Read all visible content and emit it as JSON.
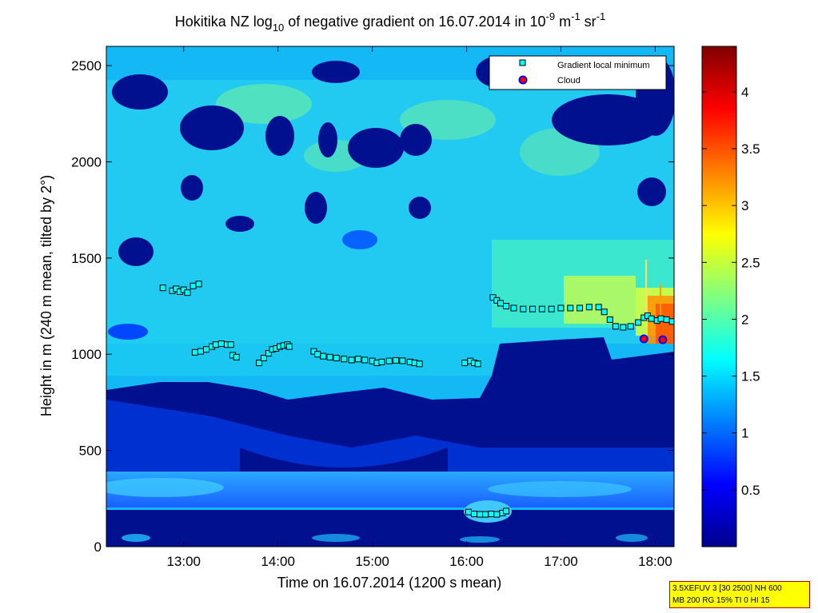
{
  "chart_data": {
    "type": "heatmap",
    "title": {
      "part1": "Hokitika NZ log",
      "sub": "10",
      "part2": " of negative gradient on 16.07.2014 in 10",
      "sup1": "-9",
      "part3": " m",
      "sup2": "-1",
      "part4": " sr",
      "sup3": "-1"
    },
    "xlabel": "Time on 16.07.2014 (1200 s mean)",
    "ylabel": "Height in m (240 m mean, tilted by 2°)",
    "x_unit": "hour",
    "xlim": [
      12.18,
      18.2
    ],
    "ylim": [
      0,
      2600
    ],
    "x_ticks": [
      {
        "value": 13,
        "label": "13:00"
      },
      {
        "value": 14,
        "label": "14:00"
      },
      {
        "value": 15,
        "label": "15:00"
      },
      {
        "value": 16,
        "label": "16:00"
      },
      {
        "value": 17,
        "label": "17:00"
      },
      {
        "value": 18,
        "label": "18:00"
      }
    ],
    "y_ticks": [
      {
        "value": 0,
        "label": "0"
      },
      {
        "value": 500,
        "label": "500"
      },
      {
        "value": 1000,
        "label": "1000"
      },
      {
        "value": 1500,
        "label": "1500"
      },
      {
        "value": 2000,
        "label": "2000"
      },
      {
        "value": 2500,
        "label": "2500"
      }
    ],
    "colorbar": {
      "range": [
        0,
        4.4
      ],
      "ticks": [
        {
          "value": 0.5,
          "label": "0.5"
        },
        {
          "value": 1,
          "label": "1"
        },
        {
          "value": 1.5,
          "label": "1.5"
        },
        {
          "value": 2,
          "label": "2"
        },
        {
          "value": 2.5,
          "label": "2.5"
        },
        {
          "value": 3,
          "label": "3"
        },
        {
          "value": 3.5,
          "label": "3.5"
        },
        {
          "value": 4,
          "label": "4"
        }
      ],
      "colormap": [
        "#00008f",
        "#0000ff",
        "#0080ff",
        "#00ffff",
        "#80ff80",
        "#ffff00",
        "#ff8000",
        "#ff0000",
        "#800000"
      ]
    },
    "legend": {
      "location": "top-right",
      "entries": [
        {
          "label": "Gradient local minimum",
          "marker": "square",
          "fill": "#00ffff",
          "edge": "#000000"
        },
        {
          "label": "Cloud",
          "marker": "circle",
          "fill": "#ff0000",
          "edge": "#0000ff"
        }
      ]
    },
    "series": [
      {
        "name": "Gradient local minimum",
        "points": [
          [
            12.78,
            1345
          ],
          [
            12.88,
            1330
          ],
          [
            12.92,
            1340
          ],
          [
            12.96,
            1325
          ],
          [
            13.0,
            1335
          ],
          [
            13.04,
            1320
          ],
          [
            13.1,
            1355
          ],
          [
            13.16,
            1365
          ],
          [
            13.12,
            1010
          ],
          [
            13.18,
            1015
          ],
          [
            13.24,
            1025
          ],
          [
            13.3,
            1040
          ],
          [
            13.34,
            1050
          ],
          [
            13.4,
            1055
          ],
          [
            13.46,
            1050
          ],
          [
            13.5,
            1050
          ],
          [
            13.52,
            995
          ],
          [
            13.56,
            985
          ],
          [
            13.8,
            955
          ],
          [
            13.85,
            980
          ],
          [
            13.9,
            1005
          ],
          [
            13.94,
            1025
          ],
          [
            13.98,
            1030
          ],
          [
            14.02,
            1040
          ],
          [
            14.06,
            1045
          ],
          [
            14.1,
            1050
          ],
          [
            14.12,
            1040
          ],
          [
            14.38,
            1015
          ],
          [
            14.42,
            1000
          ],
          [
            14.48,
            990
          ],
          [
            14.55,
            985
          ],
          [
            14.62,
            980
          ],
          [
            14.7,
            975
          ],
          [
            14.78,
            970
          ],
          [
            14.85,
            975
          ],
          [
            14.92,
            970
          ],
          [
            15.0,
            965
          ],
          [
            15.05,
            955
          ],
          [
            15.1,
            960
          ],
          [
            15.18,
            965
          ],
          [
            15.25,
            968
          ],
          [
            15.32,
            966
          ],
          [
            15.4,
            960
          ],
          [
            15.45,
            955
          ],
          [
            15.5,
            950
          ],
          [
            15.98,
            955
          ],
          [
            16.04,
            965
          ],
          [
            16.08,
            955
          ],
          [
            16.12,
            950
          ],
          [
            16.02,
            180
          ],
          [
            16.08,
            170
          ],
          [
            16.14,
            168
          ],
          [
            16.2,
            168
          ],
          [
            16.26,
            170
          ],
          [
            16.32,
            168
          ],
          [
            16.38,
            175
          ],
          [
            16.42,
            185
          ],
          [
            16.28,
            1295
          ],
          [
            16.32,
            1280
          ],
          [
            16.36,
            1265
          ],
          [
            16.42,
            1250
          ],
          [
            16.5,
            1240
          ],
          [
            16.6,
            1235
          ],
          [
            16.7,
            1235
          ],
          [
            16.8,
            1235
          ],
          [
            16.9,
            1235
          ],
          [
            17.0,
            1240
          ],
          [
            17.1,
            1240
          ],
          [
            17.2,
            1240
          ],
          [
            17.3,
            1245
          ],
          [
            17.4,
            1245
          ],
          [
            17.46,
            1220
          ],
          [
            17.52,
            1180
          ],
          [
            17.58,
            1145
          ],
          [
            17.66,
            1140
          ],
          [
            17.74,
            1145
          ],
          [
            17.82,
            1165
          ],
          [
            17.88,
            1190
          ],
          [
            17.92,
            1200
          ],
          [
            17.96,
            1185
          ],
          [
            18.02,
            1175
          ],
          [
            18.06,
            1185
          ],
          [
            18.12,
            1180
          ],
          [
            18.18,
            1170
          ]
        ]
      },
      {
        "name": "Cloud",
        "points": [
          [
            17.88,
            1080
          ],
          [
            18.08,
            1075
          ]
        ]
      }
    ]
  },
  "info_box": {
    "line1": "3.5XEFUV 3 [30 2500] NH 600",
    "line2": "MB 200 RG 15% TI 0 HI 15"
  }
}
